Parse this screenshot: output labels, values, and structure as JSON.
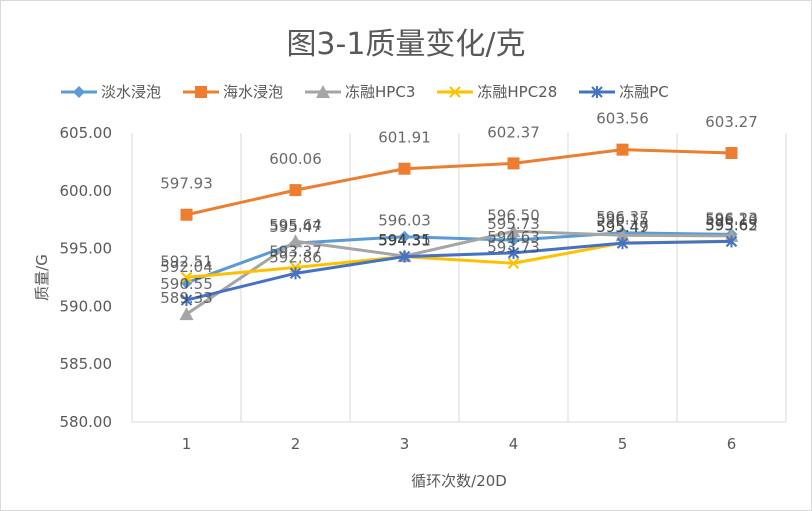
{
  "chart_data": {
    "type": "line",
    "title": "图3-1质量变化/克",
    "xlabel": "循环次数/20D",
    "ylabel": "质量/G",
    "categories": [
      "1",
      "2",
      "3",
      "4",
      "5",
      "6"
    ],
    "ylim": [
      580,
      605
    ],
    "yticks": [
      "580.00",
      "585.00",
      "590.00",
      "595.00",
      "600.00",
      "605.00"
    ],
    "ytick_values": [
      580,
      585,
      590,
      595,
      600,
      605
    ],
    "grid": "vertical",
    "legend": "top",
    "series": [
      {
        "name": "淡水浸泡",
        "color": "#5B9BD5",
        "marker": "diamond",
        "values": [
          592.04,
          595.47,
          596.03,
          595.73,
          596.37,
          596.23
        ],
        "labels": [
          "592.04",
          "595.47",
          "596.03",
          "595.73",
          "596.37",
          "596.23"
        ]
      },
      {
        "name": "海水浸泡",
        "color": "#ED7D31",
        "marker": "square",
        "values": [
          597.93,
          600.06,
          601.91,
          602.37,
          603.56,
          603.27
        ],
        "labels": [
          "597.93",
          "600.06",
          "601.91",
          "602.37",
          "603.56",
          "603.27"
        ]
      },
      {
        "name": "冻融HPC3",
        "color": "#A5A5A5",
        "marker": "triangle",
        "values": [
          589.33,
          595.64,
          594.35,
          596.5,
          596.15,
          596.1
        ],
        "labels": [
          "589.33",
          "595.64",
          "594.35",
          "596.50",
          "596.15",
          "596.10"
        ]
      },
      {
        "name": "冻融HPC28",
        "color": "#FFC000",
        "marker": "x",
        "values": [
          592.51,
          593.37,
          594.31,
          593.73,
          595.49,
          595.65
        ],
        "labels": [
          "592.51",
          "593.37",
          "594.31",
          "593.73",
          "595.49",
          "595.65"
        ]
      },
      {
        "name": "冻融PC",
        "color": "#4472C4",
        "marker": "star",
        "values": [
          590.55,
          592.86,
          594.31,
          594.63,
          595.47,
          595.62
        ],
        "labels": [
          "590.55",
          "592.86",
          "594.31",
          "594.63",
          "595.47",
          "595.62"
        ]
      }
    ]
  }
}
